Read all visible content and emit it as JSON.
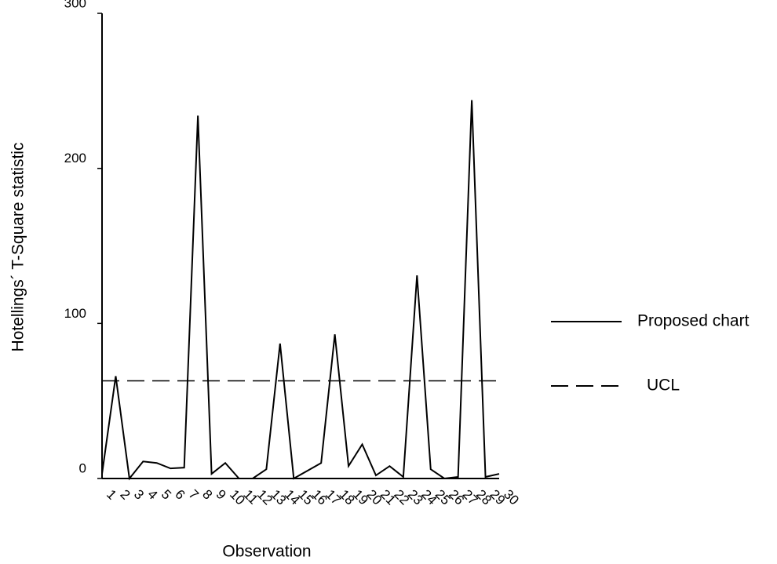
{
  "chart_data": {
    "type": "line",
    "x_label": "Observation",
    "y_label": "Hotellings´ T-Square statistic",
    "categories": [
      "1",
      "2",
      "3",
      "4",
      "5",
      "6",
      "7",
      "8",
      "9",
      "10",
      "11",
      "12",
      "13",
      "14",
      "15",
      "16",
      "17",
      "18",
      "19",
      "20",
      "21",
      "22",
      "23",
      "24",
      "25",
      "26",
      "27",
      "28",
      "29",
      "30"
    ],
    "series": [
      {
        "name": "Proposed chart",
        "color": "#000000",
        "values": [
          3,
          66,
          0,
          11,
          10,
          6.5,
          7,
          234,
          3,
          10,
          0,
          0,
          6,
          87,
          0,
          5,
          10,
          93,
          8,
          22,
          2,
          8,
          1,
          131,
          6,
          0,
          1,
          244,
          1,
          3
        ]
      }
    ],
    "reference_lines": [
      {
        "name": "UCL",
        "value": 63,
        "color": "#000000",
        "style": "dashed"
      }
    ],
    "ylim": [
      0,
      300
    ],
    "yticks": [
      0,
      100,
      200,
      300
    ],
    "legend": "right",
    "grid": false
  }
}
